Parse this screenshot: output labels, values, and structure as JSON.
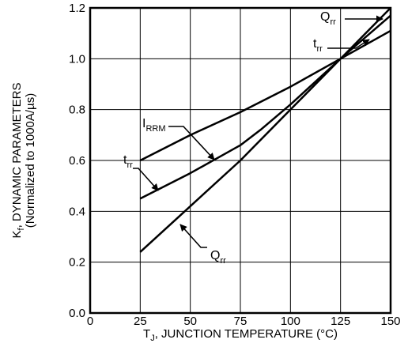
{
  "chart_data": {
    "type": "line",
    "title": "",
    "xlabel": {
      "main": "T",
      "sub": "J",
      "rest": ", JUNCTION TEMPERATURE (°C)"
    },
    "ylabel": {
      "line1_main": "K",
      "line1_sub": "f",
      "line1_rest": ", DYNAMIC PARAMETERS",
      "line2": "(Normalized  to 1000A/µs)"
    },
    "xlim": [
      0,
      150
    ],
    "ylim": [
      0,
      1.2
    ],
    "x_ticks": [
      "0",
      "25",
      "50",
      "75",
      "100",
      "125",
      "150"
    ],
    "x_tick_values": [
      0,
      25,
      50,
      75,
      100,
      125,
      150
    ],
    "y_ticks": [
      "0.0",
      "0.2",
      "0.4",
      "0.6",
      "0.8",
      "1.0",
      "1.2"
    ],
    "y_tick_values": [
      0,
      0.2,
      0.4,
      0.6,
      0.8,
      1.0,
      1.2
    ],
    "grid": true,
    "series": [
      {
        "name": "IRRM",
        "label_main": "I",
        "label_sub": "RRM",
        "x": [
          25,
          50,
          75,
          100,
          125,
          150
        ],
        "y": [
          0.6,
          0.7,
          0.79,
          0.89,
          1.0,
          1.11
        ]
      },
      {
        "name": "trr",
        "label_main": "t",
        "label_sub": "rr",
        "x": [
          25,
          50,
          75,
          85,
          100,
          125,
          150
        ],
        "y": [
          0.45,
          0.55,
          0.66,
          0.72,
          0.82,
          1.0,
          1.17
        ]
      },
      {
        "name": "Qrr",
        "label_main": "Q",
        "label_sub": "rr",
        "x": [
          25,
          50,
          75,
          100,
          125,
          150
        ],
        "y": [
          0.24,
          0.42,
          0.6,
          0.8,
          1.0,
          1.24
        ]
      }
    ],
    "annotations": [
      {
        "series": "IRRM",
        "main": "I",
        "sub": "RRM",
        "pos": "lower-left"
      },
      {
        "series": "trr",
        "main": "t",
        "sub": "rr",
        "pos": "lower-left"
      },
      {
        "series": "Qrr",
        "main": "Q",
        "sub": "rr",
        "pos": "lower-mid"
      },
      {
        "series": "Qrr",
        "main": "Q",
        "sub": "rr",
        "pos": "upper-right"
      },
      {
        "series": "trr",
        "main": "t",
        "sub": "rr",
        "pos": "upper-right"
      }
    ]
  }
}
